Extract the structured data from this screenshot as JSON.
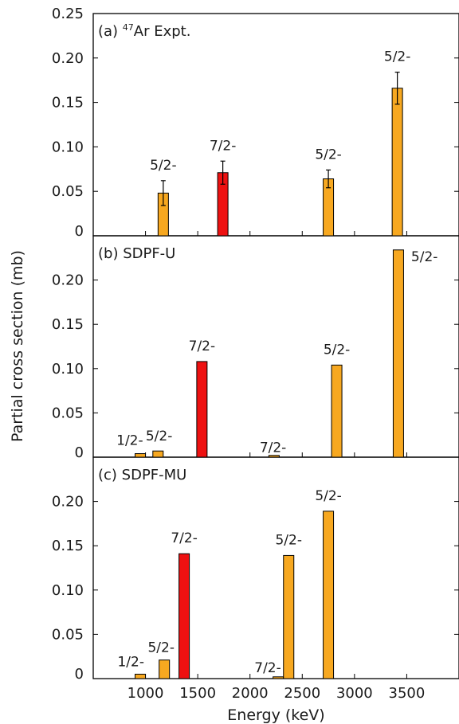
{
  "chart_data": {
    "type": "bar",
    "xlabel": "Energy (keV)",
    "ylabel": "Partial cross section (mb)",
    "x_ticks": [
      1000,
      1500,
      2000,
      2500,
      3000,
      3500
    ],
    "xlim": [
      500,
      4000
    ],
    "grid": false,
    "colors": {
      "5/2-": "#f7a820",
      "7/2-": "#ee1111",
      "1/2-": "#55c621",
      "edge": "#000000"
    },
    "panels": [
      {
        "label": "(a)",
        "isotope_mass": "47",
        "isotope_rest": "Ar Expt.",
        "ylim": [
          0,
          0.25
        ],
        "y_ticks": [
          "0",
          "0.05",
          "0.10",
          "0.15",
          "0.20",
          "0.25"
        ],
        "bars": [
          {
            "x": 1170,
            "value": 0.048,
            "error": 0.014,
            "label": "5/2-"
          },
          {
            "x": 1740,
            "value": 0.071,
            "error": 0.013,
            "label": "7/2-"
          },
          {
            "x": 2750,
            "value": 0.064,
            "error": 0.01,
            "label": "5/2-"
          },
          {
            "x": 3410,
            "value": 0.166,
            "error": 0.018,
            "label": "5/2-"
          }
        ]
      },
      {
        "label": "(b) SDPF-U",
        "ylim": [
          0,
          0.25
        ],
        "y_ticks": [
          "0",
          "0.05",
          "0.10",
          "0.15",
          "0.20"
        ],
        "bars": [
          {
            "x": 950,
            "value": 0.004,
            "label": ""
          },
          {
            "x": 1120,
            "value": 0.007,
            "label": ""
          },
          {
            "x": 1540,
            "value": 0.108,
            "label": "7/2-"
          },
          {
            "x": 2230,
            "value": 0.002,
            "label": ""
          },
          {
            "x": 2830,
            "value": 0.104,
            "label": "5/2-"
          },
          {
            "x": 3420,
            "value": 0.234,
            "label": "5/2-"
          }
        ],
        "free_labels": [
          {
            "text": "1/2-",
            "x": 850,
            "y": 0.014
          },
          {
            "text": "5/2-",
            "x": 1130,
            "y": 0.019
          },
          {
            "text": "7/2-",
            "x": 2220,
            "y": 0.006
          }
        ]
      },
      {
        "label": "(c) SDPF-MU",
        "ylim": [
          0,
          0.25
        ],
        "y_ticks": [
          "0",
          "0.05",
          "0.10",
          "0.15",
          "0.20"
        ],
        "bars": [
          {
            "x": 950,
            "value": 0.005,
            "label": ""
          },
          {
            "x": 1180,
            "value": 0.021,
            "label": ""
          },
          {
            "x": 1370,
            "value": 0.141,
            "label": "7/2-"
          },
          {
            "x": 2270,
            "value": 0.002,
            "label": ""
          },
          {
            "x": 2370,
            "value": 0.139,
            "label": "5/2-"
          },
          {
            "x": 2750,
            "value": 0.189,
            "label": "5/2-"
          }
        ],
        "free_labels": [
          {
            "text": "1/2-",
            "x": 860,
            "y": 0.014
          },
          {
            "text": "5/2-",
            "x": 1150,
            "y": 0.03
          },
          {
            "text": "7/2-",
            "x": 2170,
            "y": 0.007
          }
        ]
      }
    ]
  }
}
